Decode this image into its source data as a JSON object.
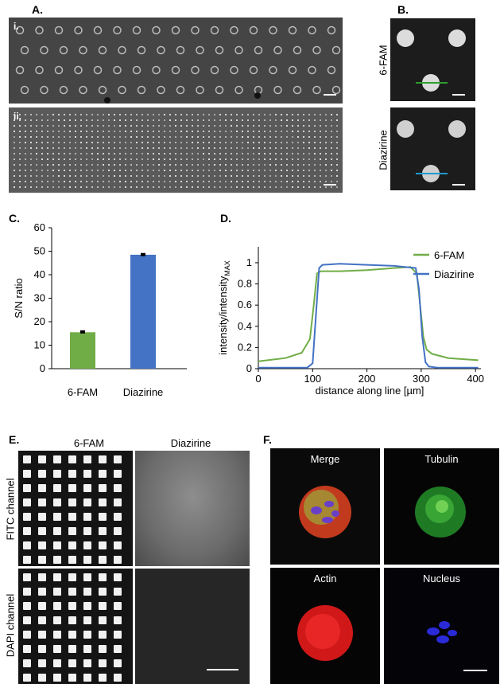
{
  "panels": {
    "A": {
      "label": "A.",
      "sub_i": "i.",
      "sub_ii": "ii."
    },
    "B": {
      "label": "B.",
      "rows": [
        "6-FAM",
        "Diazirine"
      ],
      "line_colors": [
        "#2ca02c",
        "#1f9bd1"
      ]
    },
    "C": {
      "label": "C."
    },
    "D": {
      "label": "D."
    },
    "E": {
      "label": "E.",
      "cols": [
        "6-FAM",
        "Diazirine"
      ],
      "rows": [
        "FITC channel",
        "DAPI channel"
      ]
    },
    "F": {
      "label": "F.",
      "cells": [
        "Merge",
        "Tubulin",
        "Actin",
        "Nucleus"
      ]
    }
  },
  "chart_data": [
    {
      "type": "bar",
      "categories": [
        "6-FAM",
        "Diazirine"
      ],
      "values": [
        15.5,
        48.5
      ],
      "errors": [
        0.5,
        0.4
      ],
      "colors": [
        "#70ad47",
        "#4472c4"
      ],
      "ylabel": "S/N ratio",
      "ylim": [
        0,
        60
      ],
      "yticks": [
        0,
        10,
        20,
        30,
        40,
        50,
        60
      ]
    },
    {
      "type": "line",
      "xlabel": "distance along line [µm]",
      "ylabel_main": "intensity/intensity",
      "ylabel_sub": "MAX",
      "xlim": [
        0,
        410
      ],
      "ylim": [
        0,
        1.15
      ],
      "xticks": [
        0,
        100,
        200,
        300,
        400
      ],
      "yticks": [
        0,
        0.2,
        0.4,
        0.6,
        0.8,
        1
      ],
      "legend_position": "top-right",
      "series": [
        {
          "name": "6-FAM",
          "color": "#70ad47",
          "x": [
            0,
            50,
            80,
            95,
            102,
            108,
            115,
            150,
            200,
            250,
            280,
            292,
            298,
            304,
            310,
            320,
            350,
            405
          ],
          "y": [
            0.07,
            0.1,
            0.15,
            0.28,
            0.6,
            0.9,
            0.92,
            0.92,
            0.93,
            0.95,
            0.96,
            0.9,
            0.6,
            0.3,
            0.18,
            0.14,
            0.1,
            0.08
          ]
        },
        {
          "name": "Diazirine",
          "color": "#4472c4",
          "x": [
            0,
            90,
            100,
            106,
            112,
            118,
            150,
            200,
            250,
            290,
            296,
            302,
            308,
            314,
            330,
            405
          ],
          "y": [
            0.01,
            0.01,
            0.05,
            0.5,
            0.95,
            0.98,
            0.99,
            0.98,
            0.97,
            0.95,
            0.75,
            0.3,
            0.06,
            0.02,
            0.01,
            0.01
          ]
        }
      ]
    }
  ]
}
